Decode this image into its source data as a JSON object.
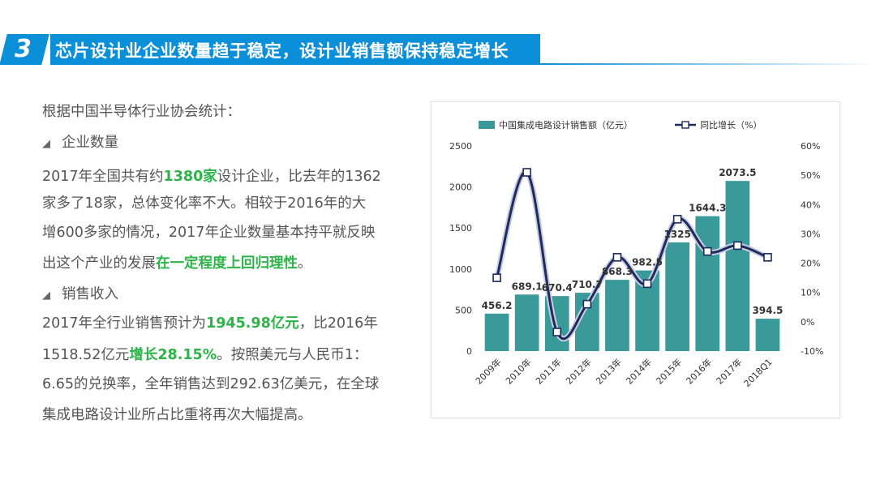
{
  "header": {
    "section_number": "3",
    "title": "芯片设计业企业数量趋于稳定，设计业销售额保持稳定增长"
  },
  "body": {
    "intro": "根据中国半导体行业协会统计：",
    "section1_heading": "企业数量",
    "p1_l1_a": "2017年全国共有约",
    "p1_l1_hl": "1380家",
    "p1_l1_b": "设计企业，比去年的1362",
    "p1_l2": "家多了18家，总体变化率不大。相较于2016年的大",
    "p1_l3": "增600多家的情况，2017年企业数量基本持平就反映",
    "p1_l4_a": "出这个产业的发展",
    "p1_l4_hl": "在一定程度上回归理性",
    "p1_l4_b": "。",
    "section2_heading": "销售收入",
    "p2_l1_a": "2017年全行业销售预计为",
    "p2_l1_hl": "1945.98亿元",
    "p2_l1_b": "，比2016年",
    "p2_l2_a": "1518.52亿元",
    "p2_l2_hl": "增长28.15%",
    "p2_l2_b": "。按照美元与人民币1：",
    "p2_l3": "6.65的兑换率，全年销售达到292.63亿美元，在全球",
    "p2_l4": "集成电路设计业所占比重将再次大幅提高。"
  },
  "chart_data": {
    "type": "bar",
    "categories": [
      "2009年",
      "2010年",
      "2011年",
      "2012年",
      "2013年",
      "2014年",
      "2015年",
      "2016年",
      "2017年",
      "2018Q1"
    ],
    "series": [
      {
        "name": "中国集成电路设计销售额（亿元）",
        "type": "bar",
        "axis": "left",
        "values": [
          456.2,
          689.1,
          670.4,
          710.7,
          868.3,
          982.5,
          1325,
          1644.3,
          2073.5,
          394.5
        ],
        "labels": [
          "456.2",
          "689.1",
          "670.4",
          "710.7",
          "868.3",
          "982.5",
          "1325",
          "1644.3",
          "2073.5",
          "394.5"
        ]
      },
      {
        "name": "同比增长（%）",
        "type": "line",
        "axis": "right",
        "values": [
          15,
          51,
          -3.5,
          6,
          22,
          13,
          35,
          24,
          26,
          22
        ]
      }
    ],
    "y_left": {
      "min": 0,
      "max": 2500,
      "ticks": [
        "0",
        "500",
        "1000",
        "1500",
        "2000",
        "2500"
      ]
    },
    "y_right": {
      "min": -10,
      "max": 60,
      "ticks": [
        "-10%",
        "0%",
        "10%",
        "20%",
        "30%",
        "40%",
        "50%",
        "60%"
      ]
    },
    "legend_position": "top",
    "grid": false,
    "colors": {
      "bar": "#3a9a9a",
      "line": "#1f2a5e",
      "marker_fill": "#ffffff"
    }
  }
}
